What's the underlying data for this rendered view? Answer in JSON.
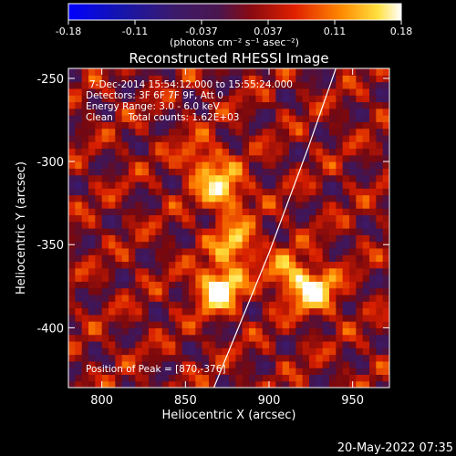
{
  "chart_data": {
    "type": "heatmap",
    "title": "Reconstructed RHESSI Image",
    "xlabel": "Heliocentric X (arcsec)",
    "ylabel": "Heliocentric Y (arcsec)",
    "xlim": [
      780,
      972
    ],
    "ylim": [
      -436,
      -244
    ],
    "x_ticks": [
      800,
      850,
      900,
      950
    ],
    "y_ticks": [
      -250,
      -300,
      -350,
      -400
    ],
    "colorbar": {
      "min": -0.18,
      "max": 0.18,
      "ticks": [
        "-0.18",
        "-0.11",
        "-0.037",
        "0.037",
        "0.11",
        "0.18"
      ],
      "unit_label": "(photons cm⁻² s⁻¹ asec⁻²)"
    },
    "annotations": [
      "7-Dec-2014 15:54:12.000 to 15:55:24.000",
      "Detectors: 3F 6F 7F 9F, Att 0",
      "Energy Range: 3.0 - 6.0 keV",
      "Clean     Total counts: 1.62E+03"
    ],
    "peak_label": "Position of Peak = [870,-376]",
    "peak": [
      870,
      -376
    ],
    "sources": [
      {
        "x": 870,
        "y": -376,
        "amp": 0.18
      },
      {
        "x": 880,
        "y": -350,
        "amp": 0.12
      },
      {
        "x": 873,
        "y": -318,
        "amp": 0.13
      },
      {
        "x": 860,
        "y": -300,
        "amp": 0.09
      },
      {
        "x": 928,
        "y": -378,
        "amp": 0.14
      },
      {
        "x": 912,
        "y": -368,
        "amp": 0.1
      }
    ],
    "limb": [
      [
        867,
        -436
      ],
      [
        900,
        -355
      ],
      [
        924,
        -290
      ],
      [
        940,
        -244
      ]
    ]
  },
  "footer": {
    "date": "20-May-2022 07:35"
  }
}
